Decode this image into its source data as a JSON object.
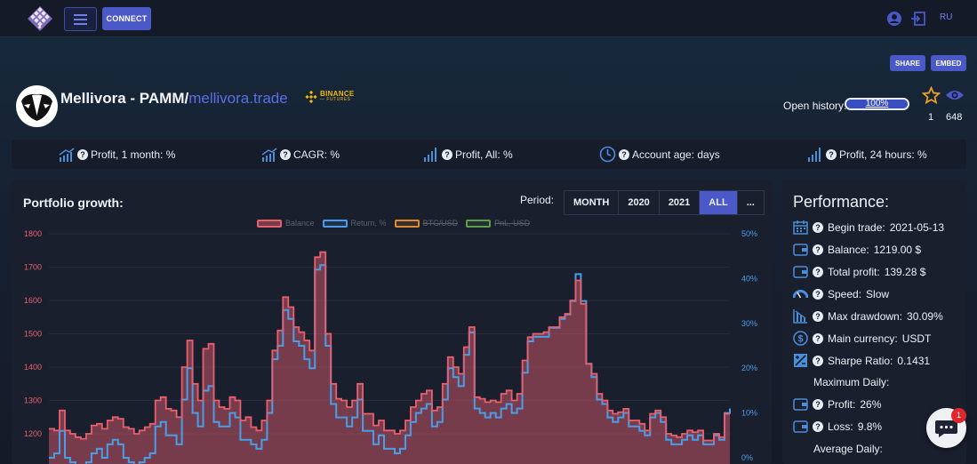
{
  "nav": {
    "connect_label": "CONNECT",
    "lang_label": "RU",
    "icons": [
      "hexagon-logo-icon",
      "menu-icon",
      "user-icon",
      "sign-in-icon"
    ]
  },
  "header": {
    "share_label": "SHARE",
    "embed_label": "EMBED",
    "title_main": "Mellivora - PAMM/",
    "title_link": "mellivora.trade",
    "exchange_line1": "BINANCE",
    "exchange_line2": "— FUTURES",
    "open_history_label": "Open history:",
    "open_history_value": "100%",
    "open_history_fraction": 1.0,
    "favorites_count": "1",
    "views_count": "648"
  },
  "metrics": [
    {
      "label": "Profit, 1 month: %",
      "icon": "trend-up-bars-icon"
    },
    {
      "label": "CAGR: %",
      "icon": "trend-up-bars-icon"
    },
    {
      "label": "Profit, All: %",
      "icon": "signal-bars-icon"
    },
    {
      "label": "Account age: days",
      "icon": "clock-icon"
    },
    {
      "label": "Profit, 24 hours: %",
      "icon": "signal-bars-icon"
    }
  ],
  "chart": {
    "title": "Portfolio growth:",
    "period_label": "Period:",
    "periods": [
      {
        "label": "MONTH",
        "active": false
      },
      {
        "label": "2020",
        "active": false
      },
      {
        "label": "2021",
        "active": false
      },
      {
        "label": "ALL",
        "active": true
      },
      {
        "label": "...",
        "active": false
      }
    ]
  },
  "chart_data": {
    "type": "area",
    "legend": [
      {
        "name": "Balance",
        "color": "#e8606e",
        "active": true
      },
      {
        "name": "Return, %",
        "color": "#4a9de8",
        "active": true
      },
      {
        "name": "BTC/USD",
        "color": "#e08a2f",
        "active": false
      },
      {
        "name": "PnL, USD",
        "color": "#5e9d4a",
        "active": false
      }
    ],
    "y_left": {
      "ticks": [
        "1800",
        "1700",
        "1600",
        "1500",
        "1400",
        "1300",
        "1200"
      ],
      "range": [
        1200,
        1800
      ],
      "color": "#e8606e"
    },
    "y_right": {
      "ticks": [
        "50%",
        "40%",
        "30%",
        "20%",
        "10%",
        "0%"
      ],
      "range": [
        0,
        50
      ],
      "color": "#4a9de8"
    },
    "series": [
      {
        "name": "Balance",
        "values": [
          1215,
          1210,
          1270,
          1210,
          1200,
          1190,
          1185,
          1200,
          1225,
          1230,
          1215,
          1240,
          1250,
          1245,
          1220,
          1215,
          1200,
          1210,
          1220,
          1230,
          1300,
          1310,
          1275,
          1270,
          1250,
          1400,
          1480,
          1350,
          1300,
          1455,
          1470,
          1300,
          1280,
          1275,
          1310,
          1300,
          1240,
          1250,
          1220,
          1210,
          1240,
          1300,
          1450,
          1510,
          1610,
          1580,
          1520,
          1505,
          1480,
          1450,
          1730,
          1745,
          1500,
          1350,
          1305,
          1300,
          1280,
          1300,
          1350,
          1260,
          1260,
          1225,
          1240,
          1210,
          1210,
          1200,
          1210,
          1240,
          1280,
          1300,
          1320,
          1330,
          1270,
          1280,
          1350,
          1430,
          1400,
          1380,
          1460,
          1520,
          1310,
          1305,
          1295,
          1300,
          1295,
          1320,
          1330,
          1300,
          1320,
          1420,
          1490,
          1500,
          1500,
          1505,
          1520,
          1520,
          1550,
          1560,
          1600,
          1660,
          1590,
          1410,
          1380,
          1320,
          1300,
          1270,
          1260,
          1265,
          1275,
          1240,
          1240,
          1230,
          1210,
          1260,
          1270,
          1250,
          1200,
          1195,
          1190,
          1200,
          1210,
          1205,
          1210,
          1180,
          1180,
          1200,
          1190,
          1260,
          1260
        ],
        "color": "#e8606e"
      },
      {
        "name": "Return, %",
        "values": [
          0,
          1,
          6,
          0,
          -1,
          -2,
          -3,
          -1,
          1,
          2,
          0,
          3,
          4,
          3,
          0,
          -1,
          -2,
          -1,
          0,
          1,
          7,
          8,
          5,
          5,
          3,
          13,
          20,
          10,
          7,
          15,
          16,
          8,
          7,
          7,
          10,
          9,
          4,
          4,
          3,
          2,
          4,
          10,
          22,
          25,
          33,
          31,
          26,
          25,
          22,
          20,
          42,
          43,
          25,
          12,
          9,
          9,
          7,
          9,
          13,
          6,
          6,
          3,
          5,
          2,
          2,
          1,
          2,
          5,
          8,
          10,
          11,
          12,
          7,
          8,
          13,
          20,
          18,
          16,
          23,
          28,
          11,
          10,
          9,
          10,
          9,
          11,
          12,
          10,
          11,
          19,
          26,
          27,
          27,
          27,
          29,
          29,
          31,
          32,
          35,
          41,
          35,
          21,
          18,
          13,
          12,
          9,
          8,
          9,
          10,
          7,
          7,
          6,
          5,
          9,
          10,
          8,
          4,
          3,
          3,
          4,
          5,
          4,
          5,
          3,
          3,
          5,
          4,
          10,
          11
        ],
        "color": "#4a9de8"
      }
    ]
  },
  "performance": {
    "title": "Performance:",
    "rows": [
      {
        "label": "Begin trade:",
        "value": "2021-05-13",
        "icon": "calendar-icon"
      },
      {
        "label": "Balance:",
        "value": "1219.00 $",
        "icon": "wallet-icon"
      },
      {
        "label": "Total profit:",
        "value": "139.28 $",
        "icon": "wallet-icon"
      },
      {
        "label": "Speed:",
        "value": "Slow",
        "icon": "speedometer-icon"
      },
      {
        "label": "Max drawdown:",
        "value": "30.09%",
        "icon": "chart-down-icon"
      },
      {
        "label": "Main currency:",
        "value": "USDT",
        "icon": "dollar-icon"
      },
      {
        "label": "Sharpe Ratio:",
        "value": "0.1431",
        "icon": "ratio-icon"
      }
    ],
    "max_daily_label": "Maximum Daily:",
    "daily_rows": [
      {
        "label": "Profit:",
        "value": "26%",
        "icon": "wallet-icon"
      },
      {
        "label": "Loss:",
        "value": "9.8%",
        "icon": "wallet-icon"
      }
    ],
    "average_daily_label": "Average Daily:"
  },
  "chat": {
    "badge": "1"
  }
}
